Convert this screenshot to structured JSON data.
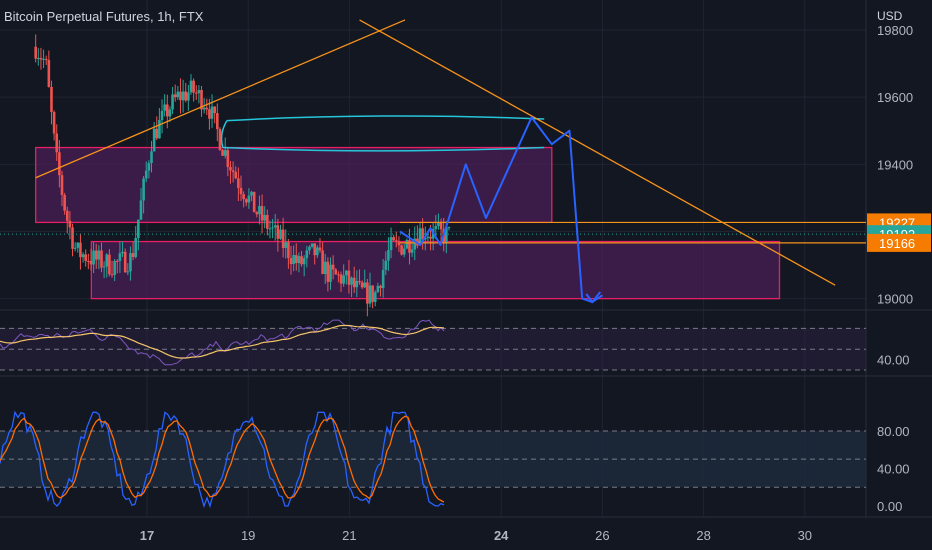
{
  "header": {
    "title": "Bitcoin Perpetual Futures, 1h, FTX",
    "currency": "USD"
  },
  "colors": {
    "background": "#131722",
    "up": "#26a69a",
    "down": "#ef5350",
    "trendline": "#f7931a",
    "zone_border": "#e91e63",
    "zone_fill": "#4a1f56",
    "projection": "#2962ff",
    "consolidation": "#26c6da",
    "rsi_line": "#7e57c2",
    "rsi_ma": "#f5c46b",
    "stoch_k": "#2962ff",
    "stoch_d": "#ff6d00",
    "stoch_band": "#1e2a3d"
  },
  "chart_data": [
    {
      "type": "candlestick",
      "name": "price",
      "x_ticks": [
        "17",
        "19",
        "21",
        "24",
        "26",
        "28",
        "30"
      ],
      "y_ticks": [
        19000,
        19200,
        19400,
        19600,
        19800
      ],
      "ylim": [
        18990,
        19830
      ],
      "price_labels": [
        {
          "value": 19227,
          "label": "19227",
          "color": "#f57c00"
        },
        {
          "value": 19192,
          "label": "19192",
          "color": "#26a69a"
        },
        {
          "value": 19166,
          "label": "19166",
          "color": "#f57c00"
        }
      ],
      "zones": [
        {
          "from_day": 14.8,
          "to_day": 25.0,
          "low": 19227,
          "high": 19450
        },
        {
          "from_day": 15.9,
          "to_day": 29.5,
          "low": 19000,
          "high": 19170
        }
      ],
      "trendlines": [
        {
          "points": [
            [
              14.8,
              19360
            ],
            [
              22.1,
              19830
            ]
          ]
        },
        {
          "points": [
            [
              21.2,
              19830
            ],
            [
              30.6,
              19040
            ]
          ]
        }
      ],
      "horizontal_lines": [
        19227,
        19166
      ],
      "projection_path": [
        [
          22.0,
          19200
        ],
        [
          22.4,
          19160
        ],
        [
          22.6,
          19210
        ],
        [
          22.8,
          19160
        ],
        [
          23.3,
          19400
        ],
        [
          23.7,
          19240
        ],
        [
          24.6,
          19540
        ],
        [
          25.0,
          19460
        ],
        [
          25.35,
          19500
        ],
        [
          25.6,
          19000
        ],
        [
          25.8,
          18990
        ],
        [
          26.0,
          19010
        ]
      ]
    },
    {
      "type": "line",
      "name": "rsi",
      "y_ticks": [
        40
      ],
      "y_tick_labels": [
        "40.00"
      ],
      "ylim": [
        30,
        80
      ],
      "band": [
        30,
        70
      ]
    },
    {
      "type": "line",
      "name": "stochastic",
      "y_ticks": [
        0,
        40,
        80
      ],
      "y_tick_labels": [
        "0.00",
        "40.00",
        "80.00"
      ],
      "ylim": [
        -5,
        105
      ],
      "band": [
        20,
        80
      ]
    }
  ]
}
